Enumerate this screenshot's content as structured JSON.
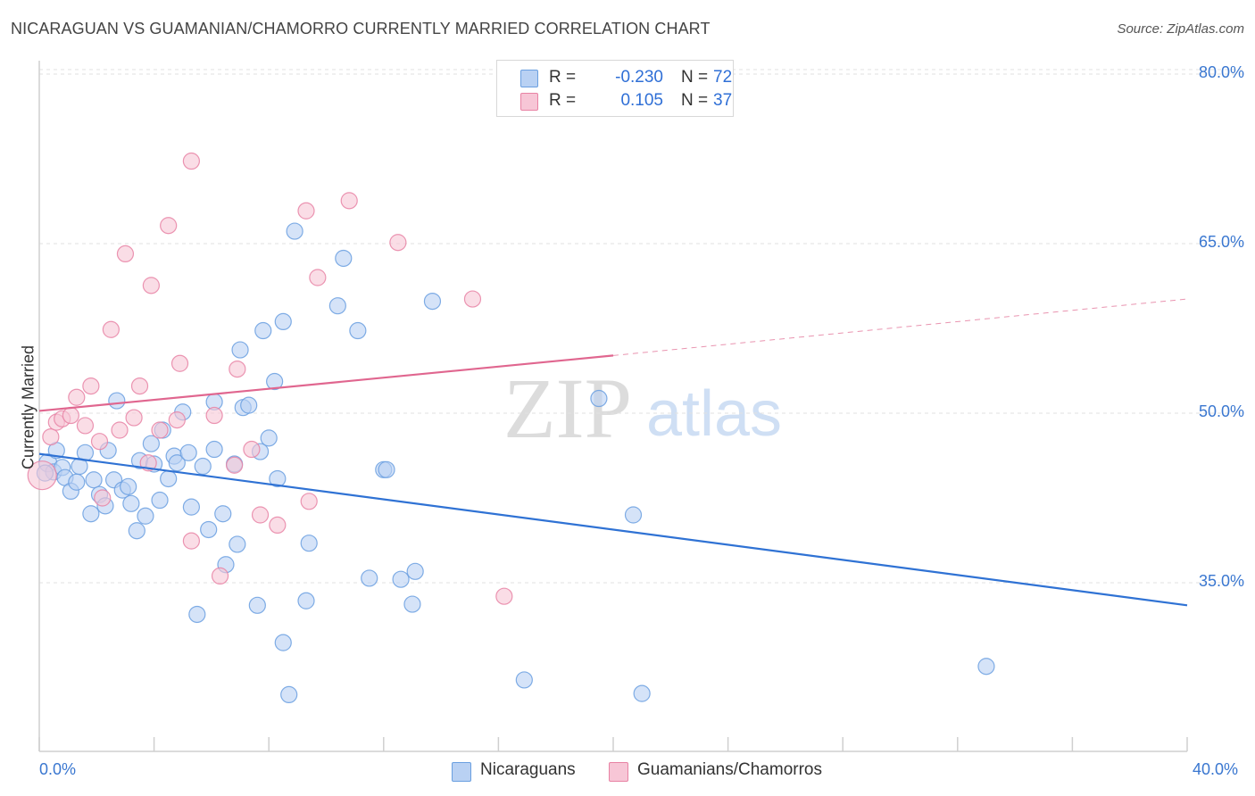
{
  "title": "NICARAGUAN VS GUAMANIAN/CHAMORRO CURRENTLY MARRIED CORRELATION CHART",
  "source": "Source: ZipAtlas.com",
  "watermark": {
    "zip": "ZIP",
    "atlas": "atlas"
  },
  "colors": {
    "blue": "#6a9fe0",
    "blue_fill": "#b9d1f3",
    "pink": "#e882a4",
    "pink_fill": "#f7c6d6",
    "blue_line": "#2f72d4",
    "pink_line": "#e0668f"
  },
  "legend": {
    "rows": [
      {
        "r_label": "R =",
        "r_value": "-0.230",
        "n_label": "N =",
        "n_value": "72"
      },
      {
        "r_label": "R =",
        "r_value": "0.105",
        "n_label": "N =",
        "n_value": "37"
      }
    ]
  },
  "bottom_legend": [
    "Nicaraguans",
    "Guamanians/Chamorros"
  ],
  "chart_data": {
    "type": "scatter",
    "title": "NICARAGUAN VS GUAMANIAN/CHAMORRO CURRENTLY MARRIED CORRELATION CHART",
    "xlabel": "",
    "ylabel": "Currently Married",
    "xlim": [
      0,
      40
    ],
    "ylim": [
      21,
      82
    ],
    "x_tick_labels": [
      "0.0%",
      "40.0%"
    ],
    "y_ticks": [
      35,
      50,
      65,
      80
    ],
    "y_tick_labels": [
      "35.0%",
      "50.0%",
      "65.0%",
      "80.0%"
    ],
    "grid": true,
    "series": [
      {
        "name": "Nicaraguans",
        "color": "#6a9fe0",
        "trend": {
          "x": [
            0,
            40
          ],
          "y": [
            46.4,
            33.0
          ],
          "dashed_from": null
        },
        "points": [
          [
            0.3,
            45.6
          ],
          [
            0.5,
            44.8
          ],
          [
            0.6,
            46.7
          ],
          [
            0.8,
            45.2
          ],
          [
            0.9,
            44.3
          ],
          [
            1.1,
            43.1
          ],
          [
            1.3,
            43.9
          ],
          [
            1.4,
            45.3
          ],
          [
            1.6,
            46.5
          ],
          [
            1.8,
            41.1
          ],
          [
            1.9,
            44.1
          ],
          [
            2.1,
            42.8
          ],
          [
            2.3,
            41.8
          ],
          [
            2.4,
            46.7
          ],
          [
            2.6,
            44.1
          ],
          [
            2.7,
            51.1
          ],
          [
            2.9,
            43.2
          ],
          [
            3.1,
            43.5
          ],
          [
            3.2,
            42.0
          ],
          [
            3.4,
            39.6
          ],
          [
            3.5,
            45.8
          ],
          [
            3.7,
            40.9
          ],
          [
            3.9,
            47.3
          ],
          [
            4.0,
            45.5
          ],
          [
            4.2,
            42.3
          ],
          [
            4.3,
            48.5
          ],
          [
            4.5,
            44.2
          ],
          [
            4.7,
            46.2
          ],
          [
            4.8,
            45.6
          ],
          [
            5.0,
            50.1
          ],
          [
            5.2,
            46.5
          ],
          [
            5.3,
            41.7
          ],
          [
            5.5,
            32.2
          ],
          [
            5.7,
            45.3
          ],
          [
            5.9,
            39.7
          ],
          [
            6.1,
            46.8
          ],
          [
            6.1,
            51.0
          ],
          [
            6.4,
            41.1
          ],
          [
            6.5,
            36.6
          ],
          [
            6.8,
            45.5
          ],
          [
            6.9,
            38.4
          ],
          [
            7.0,
            55.6
          ],
          [
            7.1,
            50.5
          ],
          [
            7.3,
            50.7
          ],
          [
            7.6,
            33.0
          ],
          [
            7.7,
            46.6
          ],
          [
            7.8,
            57.3
          ],
          [
            8.0,
            47.8
          ],
          [
            8.2,
            52.8
          ],
          [
            8.3,
            44.2
          ],
          [
            8.5,
            58.1
          ],
          [
            8.5,
            29.7
          ],
          [
            8.7,
            25.1
          ],
          [
            8.9,
            66.1
          ],
          [
            9.3,
            33.4
          ],
          [
            9.4,
            38.5
          ],
          [
            10.4,
            59.5
          ],
          [
            10.6,
            63.7
          ],
          [
            11.1,
            57.3
          ],
          [
            11.5,
            35.4
          ],
          [
            12.0,
            45.0
          ],
          [
            12.1,
            45.0
          ],
          [
            12.6,
            35.3
          ],
          [
            13.0,
            33.1
          ],
          [
            13.1,
            36.0
          ],
          [
            13.7,
            59.9
          ],
          [
            16.9,
            26.4
          ],
          [
            19.5,
            51.3
          ],
          [
            20.7,
            41.0
          ],
          [
            21.0,
            25.2
          ],
          [
            33.0,
            27.6
          ],
          [
            0.2,
            44.7
          ]
        ],
        "radius": [
          10,
          9,
          9,
          9,
          9,
          9,
          9,
          9,
          9,
          9,
          9,
          9,
          9,
          9,
          9,
          9,
          9,
          9,
          9,
          9,
          9,
          9,
          9,
          9,
          9,
          9,
          9,
          9,
          9,
          9,
          9,
          9,
          9,
          9,
          9,
          9,
          9,
          9,
          9,
          9,
          9,
          9,
          9,
          9,
          9,
          9,
          9,
          9,
          9,
          9,
          9,
          9,
          9,
          9,
          9,
          9,
          9,
          9,
          9,
          9,
          9,
          9,
          9,
          9,
          9,
          9,
          9,
          9,
          9,
          9,
          9,
          9
        ]
      },
      {
        "name": "Guamanians/Chamorros",
        "color": "#e882a4",
        "trend": {
          "x": [
            0,
            20,
            40
          ],
          "y": [
            50.2,
            55.1,
            60.1
          ],
          "dashed_from": 20
        },
        "points": [
          [
            0.1,
            44.5
          ],
          [
            0.4,
            47.9
          ],
          [
            0.6,
            49.2
          ],
          [
            0.8,
            49.5
          ],
          [
            1.1,
            49.8
          ],
          [
            1.3,
            51.4
          ],
          [
            1.6,
            48.9
          ],
          [
            1.8,
            52.4
          ],
          [
            2.1,
            47.5
          ],
          [
            2.2,
            42.5
          ],
          [
            2.5,
            57.4
          ],
          [
            2.8,
            48.5
          ],
          [
            3.0,
            64.1
          ],
          [
            3.3,
            49.6
          ],
          [
            3.5,
            52.4
          ],
          [
            3.8,
            45.6
          ],
          [
            3.9,
            61.3
          ],
          [
            4.2,
            48.5
          ],
          [
            4.5,
            66.6
          ],
          [
            4.8,
            49.4
          ],
          [
            4.9,
            54.4
          ],
          [
            5.3,
            38.7
          ],
          [
            5.3,
            72.3
          ],
          [
            6.1,
            49.8
          ],
          [
            6.3,
            35.6
          ],
          [
            6.8,
            45.4
          ],
          [
            6.9,
            53.9
          ],
          [
            7.4,
            46.8
          ],
          [
            7.7,
            41.0
          ],
          [
            8.3,
            40.1
          ],
          [
            9.3,
            67.9
          ],
          [
            9.4,
            42.2
          ],
          [
            9.7,
            62.0
          ],
          [
            10.8,
            68.8
          ],
          [
            12.5,
            65.1
          ],
          [
            15.1,
            60.1
          ],
          [
            16.2,
            33.8
          ]
        ],
        "radius": [
          16,
          9,
          9,
          9,
          9,
          9,
          9,
          9,
          9,
          9,
          9,
          9,
          9,
          9,
          9,
          9,
          9,
          9,
          9,
          9,
          9,
          9,
          9,
          9,
          9,
          9,
          9,
          9,
          9,
          9,
          9,
          9,
          9,
          9,
          9,
          9,
          9
        ]
      }
    ]
  }
}
